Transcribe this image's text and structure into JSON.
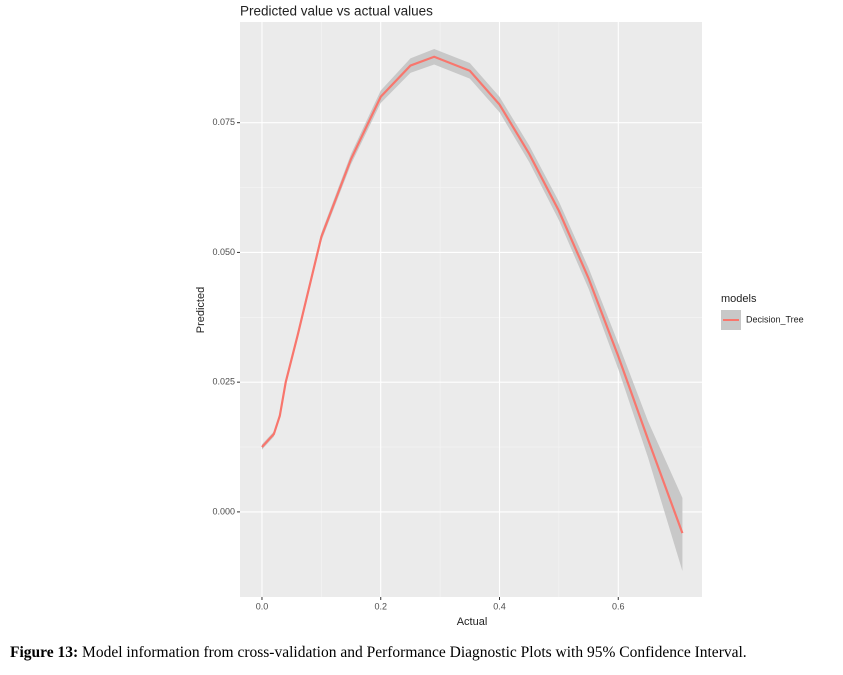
{
  "chart_data": {
    "type": "line",
    "title": "Predicted value vs actual values",
    "x_label": "Actual",
    "y_label": "Predicted",
    "x": [
      0,
      0.02,
      0.03,
      0.04,
      0.06,
      0.1,
      0.15,
      0.2,
      0.25,
      0.29,
      0.35,
      0.4,
      0.45,
      0.5,
      0.55,
      0.6,
      0.65,
      0.708
    ],
    "series": [
      {
        "name": "Decision_Tree",
        "color": "#f8766d",
        "band_color": "#c8c8c8",
        "values": [
          0.0125,
          0.015,
          0.0185,
          0.025,
          0.034,
          0.053,
          0.068,
          0.08,
          0.086,
          0.0877,
          0.085,
          0.0785,
          0.069,
          0.058,
          0.045,
          0.03,
          0.014,
          -0.0041
        ],
        "lower": [
          0.012,
          0.0145,
          0.018,
          0.0245,
          0.0334,
          0.0522,
          0.067,
          0.0788,
          0.0846,
          0.0862,
          0.0835,
          0.077,
          0.0674,
          0.0562,
          0.043,
          0.0275,
          0.0105,
          -0.0114
        ],
        "upper": [
          0.013,
          0.0155,
          0.019,
          0.0255,
          0.0346,
          0.0538,
          0.069,
          0.0812,
          0.0874,
          0.0892,
          0.0865,
          0.08,
          0.0706,
          0.0598,
          0.047,
          0.0325,
          0.0175,
          0.0027
        ]
      }
    ],
    "legend_title": "models",
    "xlim": [
      -0.037,
      0.741
    ],
    "ylim": [
      -0.0164,
      0.0944
    ],
    "xticks": [
      {
        "value": 0,
        "label": "0.0"
      },
      {
        "value": 0.2,
        "label": "0.2"
      },
      {
        "value": 0.4,
        "label": "0.4"
      },
      {
        "value": 0.6,
        "label": "0.6"
      }
    ],
    "yticks": [
      {
        "value": 0,
        "label": "0.000"
      },
      {
        "value": 0.025,
        "label": "0.025"
      },
      {
        "value": 0.05,
        "label": "0.050"
      },
      {
        "value": 0.075,
        "label": "0.075"
      }
    ],
    "grid": true
  },
  "caption": {
    "label": "Figure 13:",
    "text": " Model information from cross-validation and Performance Diagnostic Plots with 95% Confidence Interval."
  }
}
